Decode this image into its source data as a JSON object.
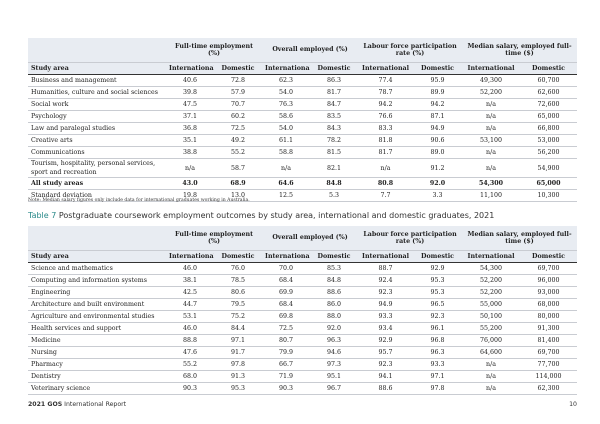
{
  "table_a": {
    "group_headers": [
      "Full-time employment (%)",
      "Overall employed (%)",
      "Labour force participation rate (%)",
      "Median salary, employed full-time ($)"
    ],
    "column_headers": [
      "Study area",
      "International",
      "Domestic",
      "International",
      "Domestic",
      "International",
      "Domestic",
      "International",
      "Domestic"
    ],
    "rows": [
      [
        "Business and management",
        "40.6",
        "72.8",
        "62.3",
        "86.3",
        "77.4",
        "95.9",
        "49,300",
        "60,700"
      ],
      [
        "Humanities, culture and social sciences",
        "39.8",
        "57.9",
        "54.0",
        "81.7",
        "78.7",
        "89.9",
        "52,200",
        "62,600"
      ],
      [
        "Social work",
        "47.5",
        "70.7",
        "76.3",
        "84.7",
        "94.2",
        "94.2",
        "n/a",
        "72,600"
      ],
      [
        "Psychology",
        "37.1",
        "60.2",
        "58.6",
        "83.5",
        "76.6",
        "87.1",
        "n/a",
        "65,000"
      ],
      [
        "Law and paralegal studies",
        "36.8",
        "72.5",
        "54.0",
        "84.3",
        "83.3",
        "94.9",
        "n/a",
        "66,800"
      ],
      [
        "Creative arts",
        "35.1",
        "49.2",
        "61.1",
        "78.2",
        "81.8",
        "90.6",
        "53,100",
        "53,000"
      ],
      [
        "Communications",
        "38.8",
        "55.2",
        "58.8",
        "81.5",
        "81.7",
        "89.0",
        "n/a",
        "56,200"
      ],
      [
        "Tourism, hospitality, personal services, sport and recreation",
        "n/a",
        "58.7",
        "n/a",
        "82.1",
        "n/a",
        "91.2",
        "n/a",
        "54,900"
      ],
      [
        "All study areas",
        "43.0",
        "68.9",
        "64.6",
        "84.8",
        "80.8",
        "92.0",
        "54,300",
        "65,000"
      ],
      [
        "Standard deviation",
        "19.8",
        "13.0",
        "12.5",
        "5.3",
        "7.7",
        "3.3",
        "11,100",
        "10,300"
      ]
    ]
  },
  "note": "Note: Median salary figures only include data for international graduates working in Australia.",
  "table_b": {
    "label": "Table 7",
    "title": "Postgraduate coursework employment outcomes by study area, international and domestic graduates, 2021",
    "group_headers": [
      "Full-time employment (%)",
      "Overall employed (%)",
      "Labour force participation rate (%)",
      "Median salary, employed full-time ($)"
    ],
    "column_headers": [
      "Study area",
      "International",
      "Domestic",
      "International",
      "Domestic",
      "International",
      "Domestic",
      "International",
      "Domestic"
    ],
    "rows": [
      [
        "Science and mathematics",
        "46.0",
        "76.0",
        "70.0",
        "85.3",
        "88.7",
        "92.9",
        "54,300",
        "69,700"
      ],
      [
        "Computing and information systems",
        "38.1",
        "78.5",
        "68.4",
        "84.8",
        "92.4",
        "95.3",
        "52,200",
        "96,000"
      ],
      [
        "Engineering",
        "42.5",
        "80.6",
        "69.9",
        "88.6",
        "92.3",
        "95.3",
        "52,200",
        "93,000"
      ],
      [
        "Architecture and built environment",
        "44.7",
        "79.5",
        "68.4",
        "86.0",
        "94.9",
        "96.5",
        "55,000",
        "68,000"
      ],
      [
        "Agriculture and environmental studies",
        "53.1",
        "75.2",
        "69.8",
        "88.0",
        "93.3",
        "92.3",
        "50,100",
        "80,000"
      ],
      [
        "Health services and support",
        "46.0",
        "84.4",
        "72.5",
        "92.0",
        "93.4",
        "96.1",
        "55,200",
        "91,300"
      ],
      [
        "Medicine",
        "88.8",
        "97.1",
        "80.7",
        "96.3",
        "92.9",
        "96.8",
        "76,000",
        "81,400"
      ],
      [
        "Nursing",
        "47.6",
        "91.7",
        "79.9",
        "94.6",
        "95.7",
        "96.3",
        "64,600",
        "69,700"
      ],
      [
        "Pharmacy",
        "55.2",
        "97.8",
        "66.7",
        "97.3",
        "92.3",
        "93.3",
        "n/a",
        "77,700"
      ],
      [
        "Dentistry",
        "68.0",
        "91.3",
        "71.9",
        "95.1",
        "94.1",
        "97.1",
        "n/a",
        "114,000"
      ],
      [
        "Veterinary science",
        "90.3",
        "95.3",
        "90.3",
        "96.7",
        "88.6",
        "97.8",
        "n/a",
        "62,300"
      ]
    ]
  },
  "footer": {
    "report": "2021 GOS",
    "title": "International Report",
    "page": "10"
  }
}
